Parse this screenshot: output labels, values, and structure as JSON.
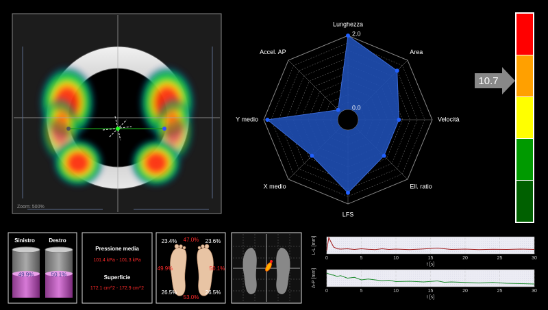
{
  "heatmap": {
    "zoom_label": "Zoom: 500%"
  },
  "chart_data": [
    {
      "type": "radar",
      "categories": [
        "Lunghezza",
        "Area",
        "Velocità",
        "Ell. ratio",
        "LFS",
        "X medio",
        "Y medio",
        "Accel. AP"
      ],
      "values": [
        2.0,
        1.6,
        1.1,
        1.1,
        1.7,
        1.1,
        1.9,
        0.1
      ],
      "color": "#1f4fb4",
      "rlim": [
        0,
        2
      ],
      "rticks": [
        {
          "value": 0,
          "label": "0.0"
        },
        {
          "value": 2,
          "label": "2.0"
        }
      ]
    },
    {
      "type": "line",
      "y_label": "L-L [mm]",
      "x_label": "t [s]",
      "color": "#a01818",
      "x": [
        0,
        0.3,
        0.6,
        1,
        1.5,
        2,
        3,
        4,
        5,
        6,
        7,
        8,
        9,
        10,
        12,
        14,
        16,
        17,
        18,
        20,
        22,
        24,
        26,
        28,
        30
      ],
      "values": [
        2,
        9.5,
        7,
        4,
        3,
        2.8,
        3,
        2.6,
        3,
        2.7,
        2.5,
        3,
        2.6,
        2.8,
        2.5,
        2.9,
        3.4,
        3,
        2.6,
        2.8,
        2.5,
        2.7,
        2.6,
        2.8,
        2.6
      ],
      "xlim": [
        0,
        30
      ],
      "xticks": [
        0,
        5,
        10,
        15,
        20,
        25,
        30
      ],
      "ylim": [
        0,
        10
      ]
    },
    {
      "type": "line",
      "y_label": "A-P [mm]",
      "x_label": "t [s]",
      "color": "#1a8a2a",
      "x": [
        0,
        0.3,
        0.6,
        1,
        1.5,
        2,
        3,
        4,
        5,
        6,
        7,
        8,
        9,
        10,
        12,
        14,
        16,
        17,
        18,
        20,
        22,
        24,
        26,
        28,
        30
      ],
      "values": [
        8,
        7.5,
        7,
        6.8,
        6,
        6.5,
        5,
        5.5,
        4,
        4.5,
        4,
        3.5,
        3.8,
        3,
        3.2,
        2.8,
        3.4,
        2.6,
        2.8,
        2.5,
        2.2,
        2.5,
        2,
        1.8,
        1.6
      ],
      "xlim": [
        0,
        30
      ],
      "xticks": [
        0,
        5,
        10,
        15,
        20,
        25,
        30
      ],
      "ylim": [
        0,
        10
      ]
    }
  ],
  "gauge": {
    "value": "10.7"
  },
  "load_split": {
    "names": [
      "Sinistro",
      "Destro"
    ],
    "values": [
      49.9,
      50.1
    ],
    "value_labels": [
      "49.9%",
      "50.1%"
    ]
  },
  "pressure": {
    "mean_title": "Pressione media",
    "mean_value": "101.4 kPa - 101.3 kPa",
    "surface_title": "Superficie",
    "surface_value": "172.1 cm^2 - 172.9 cm^2"
  },
  "feet": {
    "forefoot": {
      "left": "23.4%",
      "total": "47.0%",
      "right": "23.6%"
    },
    "sides": {
      "left": "49.9%",
      "right": "50.1%"
    },
    "rearfoot": {
      "left": "26.5%",
      "total": "53.0%",
      "right": "26.5%"
    }
  }
}
